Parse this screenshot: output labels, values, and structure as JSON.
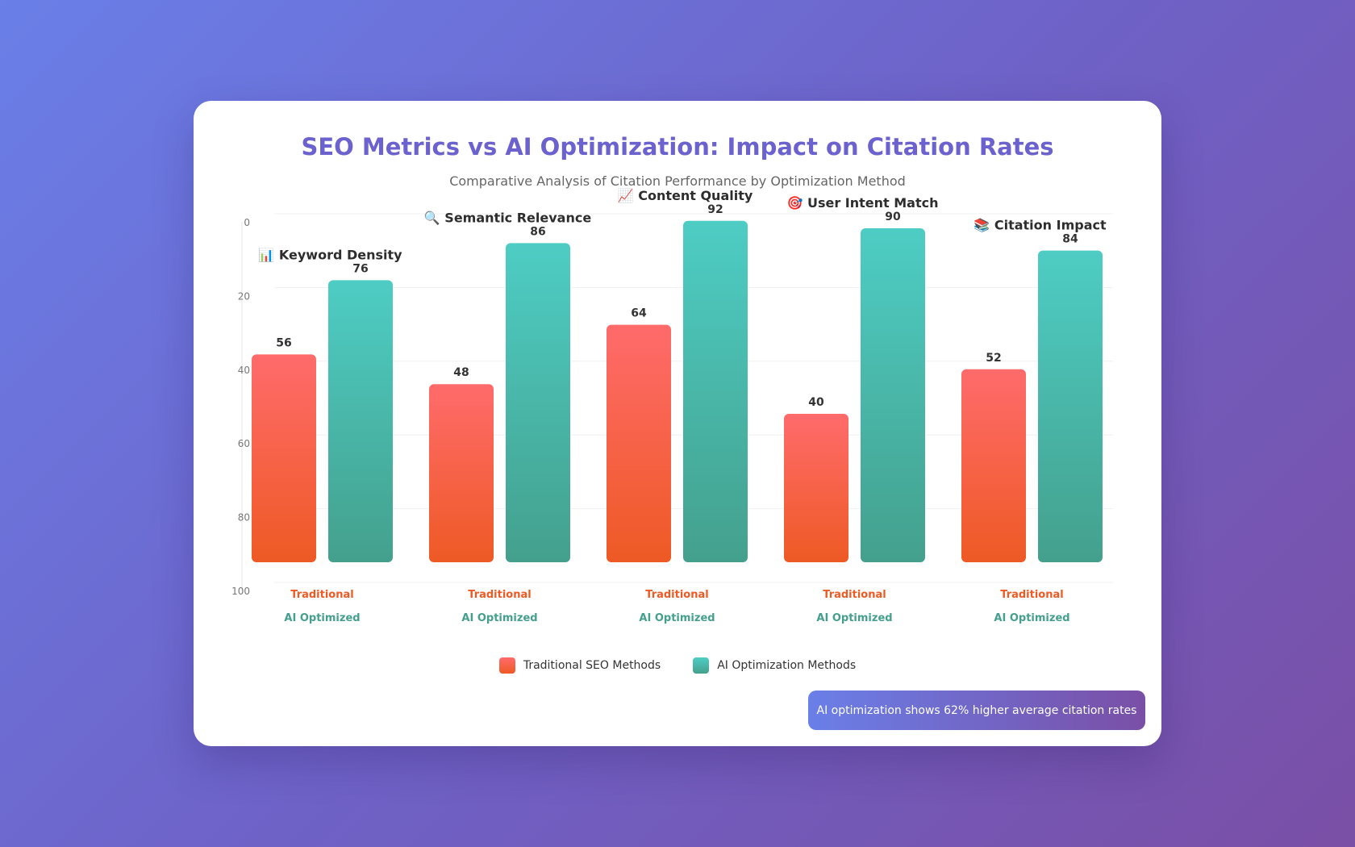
{
  "title": "SEO Metrics vs AI Optimization: Impact on Citation Rates",
  "subtitle": "Comparative Analysis of Citation Performance by Optimization Method",
  "colors": {
    "traditional_top": "#ff6b6b",
    "traditional_bottom": "#ee5a24",
    "traditional_label": "#ee5a24",
    "ai_top": "#4ecdc4",
    "ai_bottom": "#44a08d",
    "ai_label": "#44a08d",
    "title": "#6b62cf"
  },
  "legend": {
    "traditional": "Traditional SEO Methods",
    "ai": "AI Optimization Methods"
  },
  "insight": "AI optimization shows 62% higher average citation rates",
  "chart_data": {
    "type": "bar",
    "categories": [
      {
        "icon": "📊",
        "label": "Keyword Density"
      },
      {
        "icon": "🔍",
        "label": "Semantic Relevance"
      },
      {
        "icon": "📈",
        "label": "Content Quality"
      },
      {
        "icon": "🎯",
        "label": "User Intent Match"
      },
      {
        "icon": "📚",
        "label": "Citation Impact"
      }
    ],
    "series": [
      {
        "name": "Traditional",
        "values": [
          56,
          48,
          64,
          40,
          52
        ]
      },
      {
        "name": "AI Optimized",
        "values": [
          76,
          86,
          92,
          90,
          84
        ]
      }
    ],
    "yticks": [
      0,
      20,
      40,
      60,
      80,
      100
    ],
    "ylim": [
      0,
      100
    ],
    "grid": true,
    "legend_position": "bottom-center"
  }
}
